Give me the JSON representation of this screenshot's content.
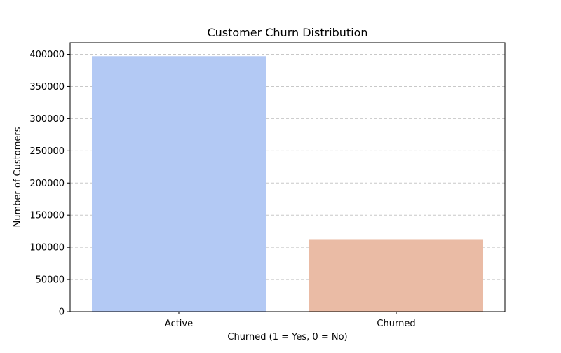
{
  "chart_data": {
    "type": "bar",
    "title": "Customer Churn Distribution",
    "xlabel": "Churned (1 = Yes, 0 = No)",
    "ylabel": "Number of Customers",
    "categories": [
      "Active",
      "Churned"
    ],
    "values": [
      397000,
      112700
    ],
    "colors": [
      "#b3c9f4",
      "#eabba5"
    ],
    "ylim": [
      0,
      418000
    ],
    "yticks": [
      0,
      50000,
      100000,
      150000,
      200000,
      250000,
      300000,
      350000,
      400000
    ],
    "ytick_labels": [
      "0",
      "50000",
      "100000",
      "150000",
      "200000",
      "250000",
      "300000",
      "350000",
      "400000"
    ],
    "grid": "y-dashed",
    "legend": "none"
  }
}
